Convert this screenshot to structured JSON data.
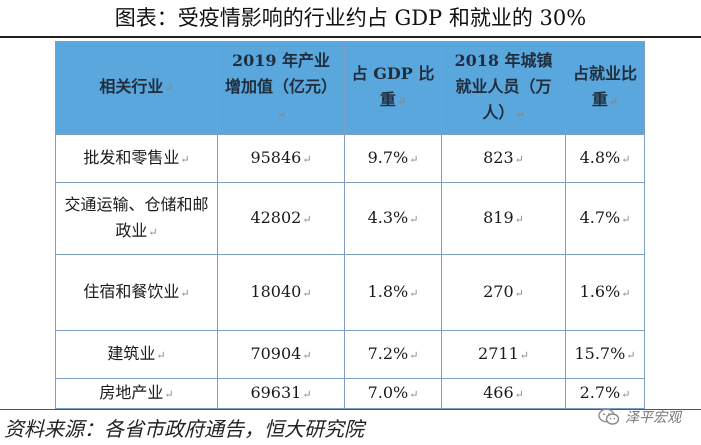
{
  "title": "图表：受疫情影响的行业约占 GDP 和就业的 30%",
  "table": {
    "headers": [
      "相关行业",
      "2019 年产业增加值（亿元）",
      "占 GDP 比重",
      "2018 年城镇就业人员（万人）",
      "占就业比重"
    ],
    "rows": [
      [
        "批发和零售业",
        "95846",
        "9.7%",
        "823",
        "4.8%"
      ],
      [
        "交通运输、仓储和邮政业",
        "42802",
        "4.3%",
        "819",
        "4.7%"
      ],
      [
        "住宿和餐饮业",
        "18040",
        "1.8%",
        "270",
        "1.6%"
      ],
      [
        "建筑业",
        "70904",
        "7.2%",
        "2711",
        "15.7%"
      ],
      [
        "房地产业",
        "69631",
        "7.0%",
        "466",
        "2.7%"
      ]
    ],
    "cell_mark": "↵"
  },
  "source": "资料来源：各省市政府通告，恒大研究院",
  "watermark": {
    "text": "泽平宏观",
    "icon": "wechat-icon"
  }
}
